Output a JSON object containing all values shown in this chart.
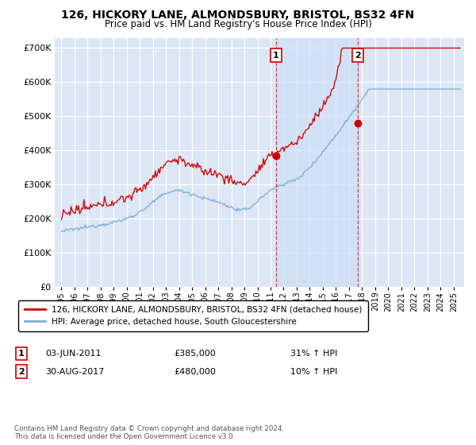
{
  "title": "126, HICKORY LANE, ALMONDSBURY, BRISTOL, BS32 4FN",
  "subtitle": "Price paid vs. HM Land Registry's House Price Index (HPI)",
  "background_color": "#ffffff",
  "plot_background": "#dce6f5",
  "shade_color": "#ccdff5",
  "grid_color": "#ffffff",
  "hpi_color": "#7bafd4",
  "price_color": "#cc0000",
  "ann1_x": 2011.42,
  "ann1_y": 385000,
  "ann1_date": "03-JUN-2011",
  "ann1_price": "£385,000",
  "ann1_pct": "31% ↑ HPI",
  "ann2_x": 2017.66,
  "ann2_y": 480000,
  "ann2_date": "30-AUG-2017",
  "ann2_price": "£480,000",
  "ann2_pct": "10% ↑ HPI",
  "legend_line1": "126, HICKORY LANE, ALMONDSBURY, BRISTOL, BS32 4FN (detached house)",
  "legend_line2": "HPI: Average price, detached house, South Gloucestershire",
  "footer": "Contains HM Land Registry data © Crown copyright and database right 2024.\nThis data is licensed under the Open Government Licence v3.0.",
  "ylim": [
    0,
    730000
  ],
  "yticks": [
    0,
    100000,
    200000,
    300000,
    400000,
    500000,
    600000,
    700000
  ],
  "xlim": [
    1994.5,
    2025.8
  ],
  "xticks": [
    1995,
    1996,
    1997,
    1998,
    1999,
    2000,
    2001,
    2002,
    2003,
    2004,
    2005,
    2006,
    2007,
    2008,
    2009,
    2010,
    2011,
    2012,
    2013,
    2014,
    2015,
    2016,
    2017,
    2018,
    2019,
    2020,
    2021,
    2022,
    2023,
    2024,
    2025
  ]
}
